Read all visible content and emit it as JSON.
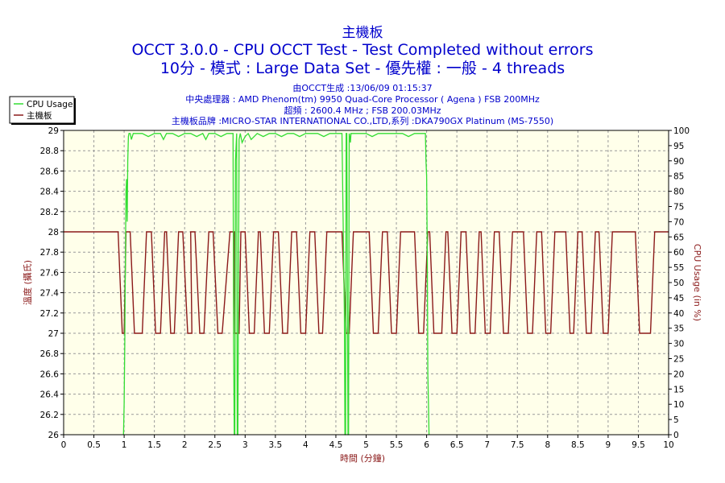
{
  "chart_data": {
    "type": "line",
    "title": "主機板",
    "subtitle": "OCCT 3.0.0 - CPU OCCT Test - Test Completed without errors",
    "subtitle2": "10分 - 模式 : Large Data Set - 優先權 : 一般 - 4 threads",
    "info": [
      "由OCCT生成 :13/06/09 01:15:37",
      "中央處理器 : AMD Phenom(tm) 9950 Quad-Core Processor ( Agena ) FSB 200MHz",
      "超頻 : 2600.4 MHz ; FSB 200.03MHz",
      "主機板品牌 :MICRO-STAR INTERNATIONAL CO.,LTD,系列 :DKA790GX Platinum (MS-7550)"
    ],
    "xlabel": "時間 (分鐘)",
    "ylabel": "溫度 (攝氏)",
    "y2label": "CPU Usage (in %)",
    "xlim": [
      0,
      10
    ],
    "ylim": [
      26,
      29
    ],
    "y2lim": [
      0,
      100
    ],
    "x_ticks": [
      "0",
      "0.5",
      "1",
      "1.5",
      "2",
      "2.5",
      "3",
      "3.5",
      "4",
      "4.5",
      "5",
      "5.5",
      "6",
      "6.5",
      "7",
      "7.5",
      "8",
      "8.5",
      "9",
      "9.5",
      "10"
    ],
    "y_ticks": [
      "26",
      "26.2",
      "26.4",
      "26.6",
      "26.8",
      "27",
      "27.2",
      "27.4",
      "27.6",
      "27.8",
      "28",
      "28.2",
      "28.4",
      "28.6",
      "28.8",
      "29"
    ],
    "y2_ticks": [
      "0",
      "5",
      "10",
      "15",
      "20",
      "25",
      "30",
      "35",
      "40",
      "45",
      "50",
      "55",
      "60",
      "65",
      "70",
      "75",
      "80",
      "85",
      "90",
      "95",
      "100"
    ],
    "grid": true,
    "legend_position": "top-left",
    "colors": {
      "cpu_usage": "#33dd33",
      "temperature": "#8b1a1a",
      "plot_bg": "#ffffea",
      "grid": "#999999",
      "title": "#0000cc"
    },
    "series": [
      {
        "name": "CPU Usage",
        "axis": "right",
        "x": [
          0.99,
          1.0,
          1.01,
          1.02,
          1.03,
          1.04,
          1.05,
          1.06,
          1.07,
          1.08,
          1.1,
          1.12,
          1.15,
          1.2,
          1.3,
          1.4,
          1.5,
          1.6,
          1.65,
          1.7,
          1.8,
          1.9,
          2.0,
          2.1,
          2.2,
          2.3,
          2.35,
          2.4,
          2.5,
          2.6,
          2.7,
          2.8,
          2.81,
          2.82,
          2.83,
          2.84,
          2.86,
          2.87,
          2.88,
          2.9,
          2.92,
          2.95,
          3.0,
          3.05,
          3.1,
          3.2,
          3.3,
          3.4,
          3.5,
          3.6,
          3.7,
          3.8,
          3.9,
          4.0,
          4.1,
          4.2,
          4.3,
          4.4,
          4.5,
          4.6,
          4.64,
          4.65,
          4.66,
          4.67,
          4.68,
          4.7,
          4.71,
          4.72,
          4.73,
          4.74,
          4.75,
          4.8,
          4.9,
          5.0,
          5.1,
          5.2,
          5.3,
          5.4,
          5.5,
          5.6,
          5.7,
          5.8,
          5.9,
          5.98,
          5.99,
          6.0,
          6.01,
          6.02,
          6.03,
          6.04
        ],
        "values": [
          0,
          10,
          30,
          55,
          80,
          84,
          70,
          90,
          98,
          99,
          99,
          97,
          99,
          99,
          99,
          98,
          99,
          99,
          97,
          99,
          99,
          98,
          99,
          99,
          98,
          99,
          97,
          99,
          99,
          98,
          99,
          99,
          30,
          0,
          0,
          90,
          99,
          0,
          0,
          97,
          99,
          96,
          98,
          99,
          97,
          99,
          98,
          99,
          99,
          98,
          99,
          99,
          98,
          99,
          99,
          99,
          98,
          99,
          99,
          99,
          40,
          0,
          0,
          99,
          99,
          0,
          0,
          99,
          98,
          96,
          99,
          99,
          99,
          99,
          98,
          99,
          99,
          99,
          99,
          99,
          98,
          99,
          99,
          99,
          90,
          85,
          60,
          20,
          10,
          0
        ]
      },
      {
        "name": "主機板",
        "axis": "left",
        "x": [
          0,
          0.9,
          0.97,
          1.0,
          1.03,
          1.1,
          1.17,
          1.3,
          1.37,
          1.45,
          1.52,
          1.6,
          1.67,
          1.7,
          1.77,
          1.83,
          1.9,
          1.97,
          2.05,
          2.12,
          2.1,
          2.17,
          2.25,
          2.32,
          2.4,
          2.47,
          2.55,
          2.62,
          2.75,
          2.82,
          2.83,
          2.9,
          2.93,
          3.0,
          3.07,
          3.15,
          3.22,
          3.25,
          3.32,
          3.4,
          3.47,
          3.55,
          3.62,
          3.7,
          3.77,
          3.85,
          3.92,
          4.0,
          4.07,
          4.15,
          4.22,
          4.28,
          4.35,
          4.6,
          4.67,
          4.72,
          4.79,
          5.05,
          5.12,
          5.2,
          5.27,
          5.35,
          5.42,
          5.5,
          5.57,
          5.8,
          5.87,
          5.95,
          6.02,
          6.05,
          6.12,
          6.25,
          6.32,
          6.35,
          6.42,
          6.5,
          6.57,
          6.65,
          6.72,
          6.8,
          6.87,
          6.9,
          6.97,
          7.05,
          7.12,
          7.2,
          7.27,
          7.35,
          7.42,
          7.6,
          7.67,
          7.75,
          7.82,
          7.9,
          7.97,
          8.05,
          8.12,
          8.3,
          8.37,
          8.43,
          8.5,
          8.57,
          8.64,
          8.72,
          8.79,
          8.85,
          8.92,
          9.0,
          9.07,
          9.45,
          9.52,
          9.7,
          9.77,
          10.0
        ],
        "values": [
          28,
          28,
          27,
          27,
          28,
          28,
          27,
          27,
          28,
          28,
          27,
          27,
          28,
          28,
          27,
          27,
          28,
          28,
          27,
          27,
          28,
          28,
          27,
          27,
          28,
          28,
          27,
          27,
          28,
          28,
          27,
          27,
          28,
          28,
          27,
          27,
          28,
          28,
          27,
          27,
          28,
          28,
          27,
          27,
          28,
          28,
          27,
          27,
          28,
          28,
          27,
          27,
          28,
          28,
          27,
          27,
          28,
          28,
          27,
          27,
          28,
          28,
          27,
          27,
          28,
          28,
          27,
          27,
          28,
          28,
          27,
          27,
          28,
          28,
          27,
          27,
          28,
          28,
          27,
          27,
          28,
          28,
          27,
          27,
          28,
          28,
          27,
          27,
          28,
          28,
          27,
          27,
          28,
          28,
          27,
          27,
          28,
          28,
          27,
          27,
          28,
          28,
          27,
          27,
          28,
          28,
          27,
          27,
          28,
          28,
          27,
          27,
          28,
          28
        ]
      }
    ]
  }
}
